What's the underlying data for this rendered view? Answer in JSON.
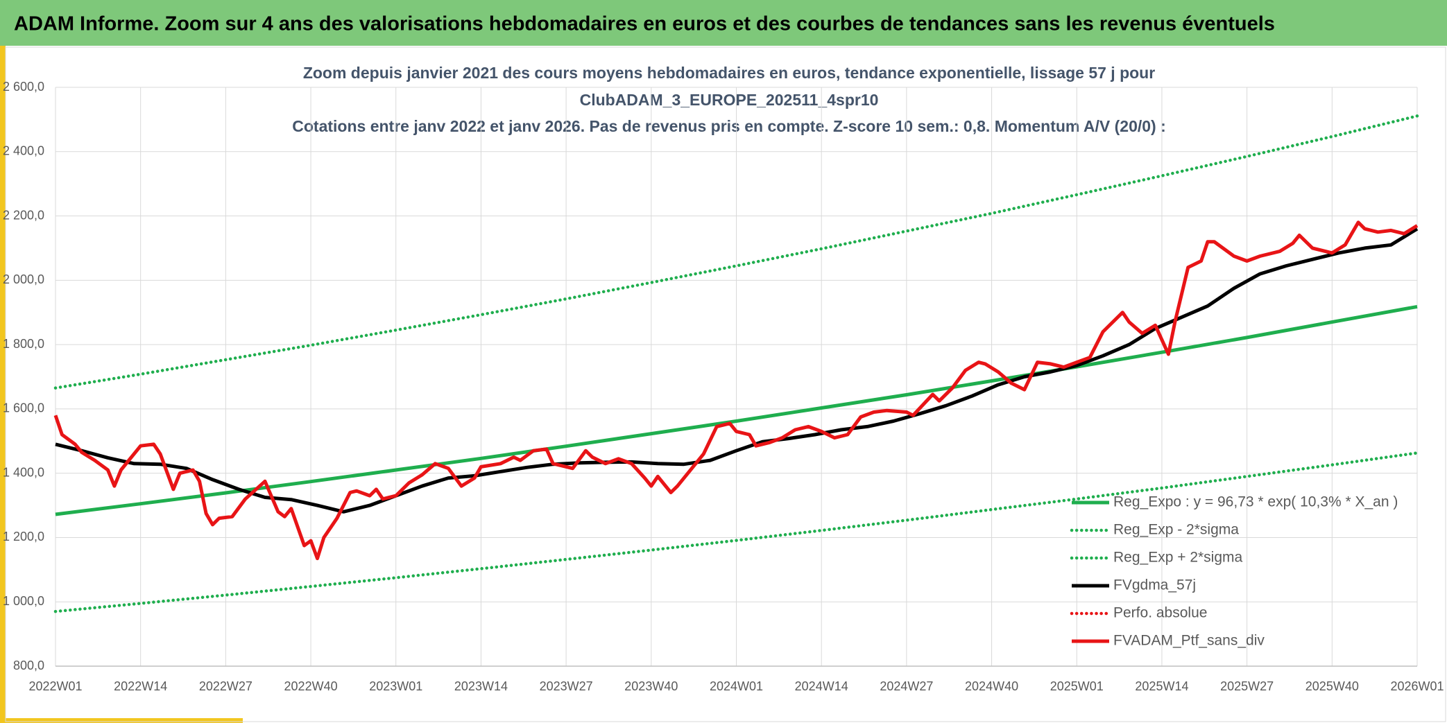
{
  "header": {
    "title": "ADAM Informe. Zoom sur 4 ans des valorisations hebdomadaires en euros et des courbes de tendances sans les revenus éventuels"
  },
  "chart_data": {
    "type": "line",
    "title": [
      "Zoom depuis janvier 2021 des cours moyens hebdomadaires en euros, tendance exponentielle, lissage 57 j pour",
      "ClubADAM_3_EUROPE_202511_4spr10",
      "Cotations entre janv 2022 et janv 2026. Pas de revenus pris en compte. Z-score 10 sem.: 0,8. Momentum A/V (20/0) :"
    ],
    "xlim": [
      0,
      208
    ],
    "xticks": [
      {
        "value": 0,
        "label": "2022W01"
      },
      {
        "value": 13,
        "label": "2022W14"
      },
      {
        "value": 26,
        "label": "2022W27"
      },
      {
        "value": 39,
        "label": "2022W40"
      },
      {
        "value": 52,
        "label": "2023W01"
      },
      {
        "value": 65,
        "label": "2023W14"
      },
      {
        "value": 78,
        "label": "2023W27"
      },
      {
        "value": 91,
        "label": "2023W40"
      },
      {
        "value": 104,
        "label": "2024W01"
      },
      {
        "value": 117,
        "label": "2024W14"
      },
      {
        "value": 130,
        "label": "2024W27"
      },
      {
        "value": 143,
        "label": "2024W40"
      },
      {
        "value": 156,
        "label": "2025W01"
      },
      {
        "value": 169,
        "label": "2025W14"
      },
      {
        "value": 182,
        "label": "2025W27"
      },
      {
        "value": 195,
        "label": "2025W40"
      },
      {
        "value": 208,
        "label": "2026W01"
      }
    ],
    "ylim": [
      800,
      2600
    ],
    "yticks": [
      {
        "value": 800,
        "label": "800,0"
      },
      {
        "value": 1000,
        "label": "1 000,0"
      },
      {
        "value": 1200,
        "label": "1 200,0"
      },
      {
        "value": 1400,
        "label": "1 400,0"
      },
      {
        "value": 1600,
        "label": "1 600,0"
      },
      {
        "value": 1800,
        "label": "1 800,0"
      },
      {
        "value": 2000,
        "label": "2 000,0"
      },
      {
        "value": 2200,
        "label": "2 200,0"
      },
      {
        "value": 2400,
        "label": "2 400,0"
      },
      {
        "value": 2600,
        "label": "2 600,0"
      }
    ],
    "grid": true,
    "legend": "lower right",
    "series": [
      {
        "name": "Reg_Expo : y = 96,73 * exp( 10,3% *  X_an )",
        "color": "#1fae4e",
        "style": "solid",
        "x": [
          0,
          13,
          26,
          39,
          52,
          65,
          78,
          91,
          104,
          117,
          130,
          143,
          156,
          169,
          182,
          195,
          208
        ],
        "values": [
          1272,
          1305,
          1339,
          1374,
          1410,
          1446,
          1484,
          1523,
          1562,
          1603,
          1644,
          1687,
          1731,
          1776,
          1822,
          1870,
          1918
        ]
      },
      {
        "name": "Reg_Exp - 2*sigma",
        "color": "#1fae4e",
        "style": "dotted",
        "x": [
          0,
          13,
          26,
          39,
          52,
          65,
          78,
          91,
          104,
          117,
          130,
          143,
          156,
          169,
          182,
          195,
          208
        ],
        "values": [
          970,
          995,
          1021,
          1048,
          1075,
          1103,
          1132,
          1161,
          1191,
          1222,
          1254,
          1287,
          1320,
          1354,
          1390,
          1426,
          1463
        ]
      },
      {
        "name": "Reg_Exp + 2*sigma",
        "color": "#1fae4e",
        "style": "dotted",
        "x": [
          0,
          13,
          26,
          39,
          52,
          65,
          78,
          91,
          104,
          117,
          130,
          143,
          156,
          169,
          182,
          195,
          208
        ],
        "values": [
          1665,
          1708,
          1753,
          1798,
          1845,
          1893,
          1942,
          1993,
          2045,
          2098,
          2153,
          2208,
          2266,
          2325,
          2385,
          2447,
          2511
        ]
      },
      {
        "name": "FVgdma_57j",
        "color": "#000000",
        "style": "solid",
        "x": [
          0,
          4,
          8,
          12,
          16,
          20,
          24,
          28,
          32,
          36,
          40,
          44,
          48,
          52,
          56,
          60,
          64,
          68,
          72,
          76,
          80,
          84,
          88,
          92,
          96,
          100,
          104,
          108,
          112,
          116,
          120,
          124,
          128,
          132,
          136,
          140,
          144,
          148,
          152,
          156,
          160,
          164,
          168,
          172,
          176,
          180,
          184,
          188,
          192,
          196,
          200,
          204,
          208
        ],
        "values": [
          1490,
          1470,
          1448,
          1430,
          1428,
          1415,
          1380,
          1350,
          1325,
          1318,
          1300,
          1280,
          1300,
          1330,
          1360,
          1385,
          1392,
          1405,
          1418,
          1428,
          1432,
          1434,
          1435,
          1430,
          1428,
          1440,
          1470,
          1498,
          1508,
          1520,
          1535,
          1545,
          1562,
          1585,
          1610,
          1640,
          1675,
          1700,
          1715,
          1735,
          1765,
          1800,
          1850,
          1885,
          1920,
          1975,
          2020,
          2045,
          2065,
          2085,
          2100,
          2110,
          2160
        ]
      },
      {
        "name": "Perfo. absolue",
        "color": "#e81416",
        "style": "dotted",
        "x": [],
        "values": []
      },
      {
        "name": "FVADAM_Ptf_sans_div",
        "color": "#e81416",
        "style": "solid",
        "x": [
          0,
          1,
          3,
          4,
          6,
          8,
          9,
          10,
          13,
          15,
          16,
          18,
          19,
          21,
          22,
          23,
          24,
          25,
          27,
          29,
          32,
          34,
          35,
          36,
          38,
          39,
          40,
          41,
          43,
          45,
          46,
          48,
          49,
          50,
          52,
          54,
          56,
          58,
          60,
          62,
          64,
          65,
          68,
          70,
          71,
          73,
          75,
          76,
          79,
          81,
          82,
          84,
          86,
          88,
          90,
          91,
          92,
          94,
          95,
          99,
          101,
          103,
          104,
          106,
          107,
          109,
          111,
          113,
          115,
          117,
          119,
          121,
          123,
          125,
          127,
          130,
          131,
          134,
          135,
          137,
          139,
          141,
          142,
          144,
          146,
          148,
          150,
          152,
          154,
          156,
          158,
          160,
          163,
          164,
          166,
          168,
          170,
          171,
          173,
          175,
          176,
          177,
          180,
          182,
          184,
          187,
          189,
          190,
          192,
          195,
          197,
          199,
          200,
          202,
          204,
          206,
          208
        ],
        "values": [
          1580,
          1520,
          1490,
          1465,
          1440,
          1410,
          1360,
          1410,
          1485,
          1490,
          1460,
          1350,
          1400,
          1410,
          1375,
          1275,
          1240,
          1260,
          1265,
          1320,
          1375,
          1280,
          1265,
          1290,
          1175,
          1190,
          1135,
          1200,
          1260,
          1340,
          1345,
          1330,
          1350,
          1320,
          1330,
          1370,
          1395,
          1430,
          1415,
          1360,
          1385,
          1420,
          1430,
          1450,
          1440,
          1470,
          1475,
          1430,
          1415,
          1470,
          1450,
          1430,
          1445,
          1430,
          1385,
          1360,
          1390,
          1340,
          1360,
          1460,
          1545,
          1555,
          1530,
          1520,
          1485,
          1495,
          1510,
          1535,
          1545,
          1530,
          1510,
          1520,
          1575,
          1590,
          1595,
          1590,
          1580,
          1645,
          1625,
          1665,
          1720,
          1745,
          1740,
          1715,
          1680,
          1660,
          1745,
          1740,
          1730,
          1745,
          1760,
          1840,
          1900,
          1870,
          1835,
          1860,
          1770,
          1870,
          2040,
          2060,
          2120,
          2120,
          2075,
          2060,
          2075,
          2090,
          2115,
          2140,
          2100,
          2085,
          2110,
          2180,
          2160,
          2150,
          2155,
          2145,
          2170
        ]
      }
    ]
  }
}
